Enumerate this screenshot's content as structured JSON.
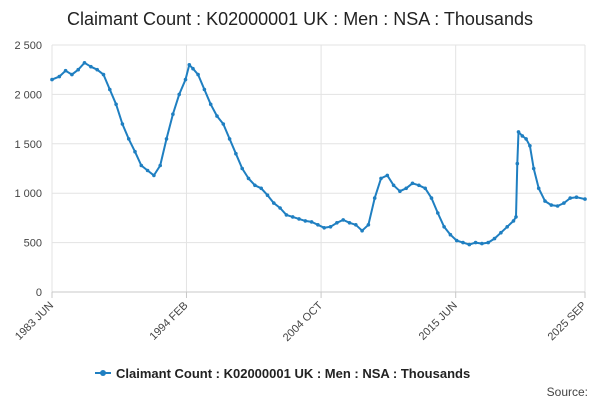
{
  "chart_data": {
    "type": "line",
    "title": "Claimant Count : K02000001 UK : Men : NSA : Thousands",
    "xlabel": "",
    "ylabel": "",
    "ylim": [
      0,
      2500
    ],
    "yticks": [
      0,
      500,
      1000,
      1500,
      2000,
      2500
    ],
    "ytick_labels": [
      "0",
      "500",
      "1 000",
      "1 500",
      "2 000",
      "2 500"
    ],
    "xlim": [
      1983.42,
      2025.67
    ],
    "xticks": [
      {
        "label": "1983 JUN",
        "x": 1983.42
      },
      {
        "label": "1994 FEB",
        "x": 1994.08
      },
      {
        "label": "2004 OCT",
        "x": 2004.75
      },
      {
        "label": "2015 JUN",
        "x": 2015.42
      },
      {
        "label": "2025 SEP",
        "x": 2025.67
      }
    ],
    "grid": true,
    "legend": "bottom",
    "series": [
      {
        "name": "Claimant Count : K02000001 UK : Men : NSA : Thousands",
        "color": "#1f7fc1",
        "points": [
          [
            1983.42,
            2150
          ],
          [
            1984.0,
            2180
          ],
          [
            1984.5,
            2240
          ],
          [
            1985.0,
            2200
          ],
          [
            1985.5,
            2250
          ],
          [
            1986.0,
            2320
          ],
          [
            1986.5,
            2280
          ],
          [
            1987.0,
            2250
          ],
          [
            1987.5,
            2200
          ],
          [
            1988.0,
            2050
          ],
          [
            1988.5,
            1900
          ],
          [
            1989.0,
            1700
          ],
          [
            1989.5,
            1550
          ],
          [
            1990.0,
            1420
          ],
          [
            1990.5,
            1280
          ],
          [
            1991.0,
            1230
          ],
          [
            1991.5,
            1180
          ],
          [
            1992.0,
            1280
          ],
          [
            1992.5,
            1550
          ],
          [
            1993.0,
            1800
          ],
          [
            1993.5,
            2000
          ],
          [
            1994.0,
            2150
          ],
          [
            1994.3,
            2300
          ],
          [
            1994.6,
            2260
          ],
          [
            1995.0,
            2200
          ],
          [
            1995.5,
            2050
          ],
          [
            1996.0,
            1900
          ],
          [
            1996.5,
            1780
          ],
          [
            1997.0,
            1700
          ],
          [
            1997.5,
            1550
          ],
          [
            1998.0,
            1400
          ],
          [
            1998.5,
            1250
          ],
          [
            1999.0,
            1150
          ],
          [
            1999.5,
            1080
          ],
          [
            2000.0,
            1050
          ],
          [
            2000.5,
            980
          ],
          [
            2001.0,
            900
          ],
          [
            2001.5,
            850
          ],
          [
            2002.0,
            780
          ],
          [
            2002.5,
            760
          ],
          [
            2003.0,
            740
          ],
          [
            2003.5,
            720
          ],
          [
            2004.0,
            710
          ],
          [
            2004.5,
            680
          ],
          [
            2005.0,
            650
          ],
          [
            2005.5,
            660
          ],
          [
            2006.0,
            700
          ],
          [
            2006.5,
            730
          ],
          [
            2007.0,
            700
          ],
          [
            2007.5,
            680
          ],
          [
            2008.0,
            620
          ],
          [
            2008.5,
            680
          ],
          [
            2009.0,
            950
          ],
          [
            2009.5,
            1150
          ],
          [
            2010.0,
            1180
          ],
          [
            2010.5,
            1080
          ],
          [
            2011.0,
            1020
          ],
          [
            2011.5,
            1050
          ],
          [
            2012.0,
            1100
          ],
          [
            2012.5,
            1080
          ],
          [
            2013.0,
            1050
          ],
          [
            2013.5,
            950
          ],
          [
            2014.0,
            800
          ],
          [
            2014.5,
            660
          ],
          [
            2015.0,
            580
          ],
          [
            2015.5,
            520
          ],
          [
            2016.0,
            500
          ],
          [
            2016.5,
            480
          ],
          [
            2017.0,
            500
          ],
          [
            2017.5,
            490
          ],
          [
            2018.0,
            500
          ],
          [
            2018.5,
            540
          ],
          [
            2019.0,
            600
          ],
          [
            2019.5,
            660
          ],
          [
            2020.0,
            720
          ],
          [
            2020.2,
            760
          ],
          [
            2020.3,
            1300
          ],
          [
            2020.4,
            1620
          ],
          [
            2020.7,
            1580
          ],
          [
            2021.0,
            1550
          ],
          [
            2021.3,
            1480
          ],
          [
            2021.6,
            1250
          ],
          [
            2022.0,
            1050
          ],
          [
            2022.5,
            920
          ],
          [
            2023.0,
            880
          ],
          [
            2023.5,
            870
          ],
          [
            2024.0,
            900
          ],
          [
            2024.5,
            950
          ],
          [
            2025.0,
            960
          ],
          [
            2025.67,
            940
          ]
        ]
      }
    ]
  },
  "source_label": "Source:"
}
